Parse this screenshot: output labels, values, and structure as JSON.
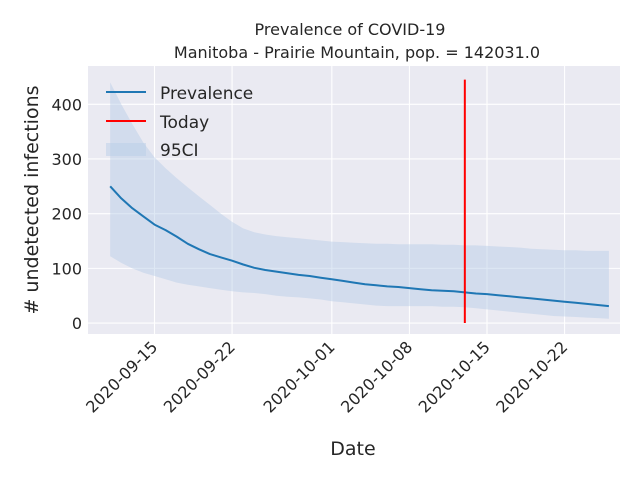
{
  "chart_data": {
    "type": "line",
    "title": "Prevalence of COVID-19",
    "subtitle": "Manitoba - Prairie Mountain, pop. = 142031.0",
    "xlabel": "Date",
    "ylabel": "# undetected infections",
    "x_range": [
      "2020-09-09",
      "2020-10-27"
    ],
    "ylim": [
      -20,
      470
    ],
    "x_ticks": [
      "2020-09-15",
      "2020-09-22",
      "2020-10-01",
      "2020-10-08",
      "2020-10-15",
      "2020-10-22"
    ],
    "y_ticks": [
      0,
      100,
      200,
      300,
      400
    ],
    "grid": true,
    "legend_position": "top-left",
    "legend": [
      "Prevalence",
      "Today",
      "95CI"
    ],
    "colors": {
      "prevalence": "#1f77b4",
      "today": "#ff0000",
      "ci": "#b6cde6",
      "background": "#eaeaf2",
      "grid": "#ffffff"
    },
    "today": "2020-10-13",
    "series": [
      {
        "name": "Prevalence",
        "x": [
          "2020-09-11",
          "2020-09-12",
          "2020-09-13",
          "2020-09-14",
          "2020-09-15",
          "2020-09-16",
          "2020-09-17",
          "2020-09-18",
          "2020-09-19",
          "2020-09-20",
          "2020-09-21",
          "2020-09-22",
          "2020-09-23",
          "2020-09-24",
          "2020-09-25",
          "2020-09-26",
          "2020-09-27",
          "2020-09-28",
          "2020-09-29",
          "2020-09-30",
          "2020-10-01",
          "2020-10-02",
          "2020-10-03",
          "2020-10-04",
          "2020-10-05",
          "2020-10-06",
          "2020-10-07",
          "2020-10-08",
          "2020-10-09",
          "2020-10-10",
          "2020-10-11",
          "2020-10-12",
          "2020-10-13",
          "2020-10-14",
          "2020-10-15",
          "2020-10-16",
          "2020-10-17",
          "2020-10-18",
          "2020-10-19",
          "2020-10-20",
          "2020-10-21",
          "2020-10-22",
          "2020-10-23",
          "2020-10-24",
          "2020-10-25",
          "2020-10-26"
        ],
        "values": [
          250,
          228,
          210,
          195,
          180,
          170,
          158,
          145,
          135,
          126,
          120,
          114,
          107,
          101,
          97,
          94,
          91,
          88,
          86,
          83,
          80,
          77,
          74,
          71,
          69,
          67,
          66,
          64,
          62,
          60,
          59,
          58,
          56,
          54,
          53,
          51,
          49,
          47,
          45,
          43,
          41,
          39,
          37,
          35,
          33,
          31
        ]
      },
      {
        "name": "95CI",
        "x": [
          "2020-09-11",
          "2020-09-12",
          "2020-09-13",
          "2020-09-14",
          "2020-09-15",
          "2020-09-16",
          "2020-09-17",
          "2020-09-18",
          "2020-09-19",
          "2020-09-20",
          "2020-09-21",
          "2020-09-22",
          "2020-09-23",
          "2020-09-24",
          "2020-09-25",
          "2020-09-26",
          "2020-09-27",
          "2020-09-28",
          "2020-09-29",
          "2020-09-30",
          "2020-10-01",
          "2020-10-02",
          "2020-10-03",
          "2020-10-04",
          "2020-10-05",
          "2020-10-06",
          "2020-10-07",
          "2020-10-08",
          "2020-10-09",
          "2020-10-10",
          "2020-10-11",
          "2020-10-12",
          "2020-10-13",
          "2020-10-14",
          "2020-10-15",
          "2020-10-16",
          "2020-10-17",
          "2020-10-18",
          "2020-10-19",
          "2020-10-20",
          "2020-10-21",
          "2020-10-22",
          "2020-10-23",
          "2020-10-24",
          "2020-10-25",
          "2020-10-26"
        ],
        "lower": [
          122,
          110,
          100,
          92,
          86,
          80,
          74,
          70,
          67,
          64,
          61,
          58,
          56,
          55,
          53,
          50,
          48,
          47,
          45,
          43,
          40,
          38,
          36,
          34,
          32,
          31,
          31,
          31,
          31,
          31,
          30,
          30,
          29,
          27,
          25,
          23,
          21,
          19,
          17,
          15,
          13,
          12,
          11,
          10,
          9,
          8
        ],
        "upper": [
          440,
          400,
          364,
          330,
          303,
          283,
          265,
          248,
          232,
          216,
          200,
          185,
          173,
          166,
          162,
          159,
          157,
          155,
          153,
          151,
          149,
          148,
          147,
          146,
          145,
          145,
          144,
          144,
          144,
          144,
          143,
          143,
          142,
          142,
          141,
          140,
          139,
          138,
          136,
          135,
          134,
          133,
          133,
          132,
          132,
          132
        ]
      }
    ]
  }
}
